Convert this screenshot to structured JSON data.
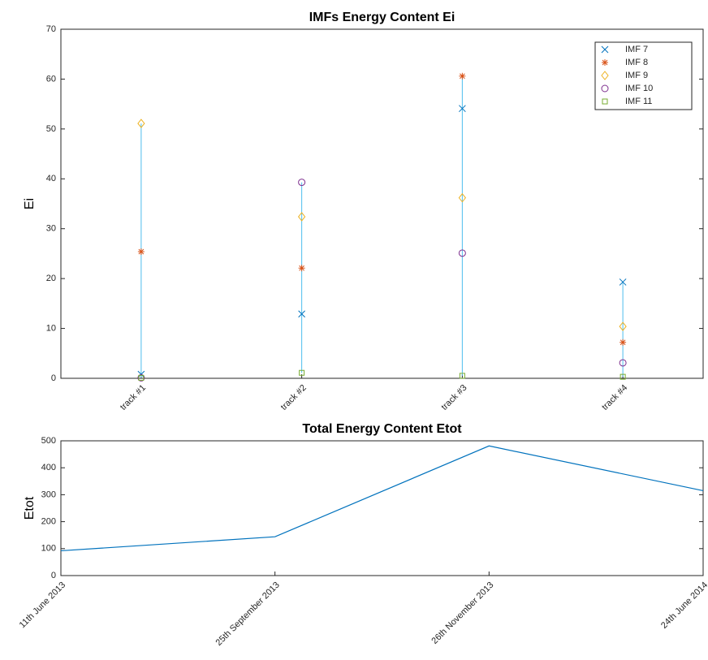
{
  "chart_data": [
    {
      "type": "scatter",
      "title": "IMFs Energy Content Ei",
      "y_label": "Ei",
      "categories": [
        "track #1",
        "track #2",
        "track #3",
        "track #4"
      ],
      "series": [
        {
          "name": "IMF 7",
          "color": "#0072bd",
          "marker": "x",
          "values": [
            0.8,
            12.9,
            54.1,
            19.3
          ]
        },
        {
          "name": "IMF 8",
          "color": "#d95319",
          "marker": "star",
          "values": [
            25.4,
            22.1,
            60.6,
            7.2
          ]
        },
        {
          "name": "IMF 9",
          "color": "#edb120",
          "marker": "diamond",
          "values": [
            51.1,
            32.4,
            36.2,
            10.4
          ]
        },
        {
          "name": "IMF 10",
          "color": "#7e2f8e",
          "marker": "circle",
          "values": [
            0.1,
            39.3,
            25.1,
            3.1
          ]
        },
        {
          "name": "IMF 11",
          "color": "#77ac30",
          "marker": "square",
          "values": [
            0.1,
            1.1,
            0.5,
            0.3
          ]
        }
      ],
      "range_color": "#4dbeee",
      "ylim": [
        0,
        70
      ],
      "yticks": [
        0,
        10,
        20,
        30,
        40,
        50,
        60,
        70
      ],
      "legend": "northeast"
    },
    {
      "type": "line",
      "title": "Total Energy Content Etot",
      "y_label": "Etot",
      "categories": [
        "11th June 2013",
        "25th September 2013",
        "26th November 2013",
        "24th June 2014"
      ],
      "values": [
        92,
        144,
        481,
        315
      ],
      "color": "#0072bd",
      "ylim": [
        0,
        500
      ],
      "yticks": [
        0,
        100,
        200,
        300,
        400,
        500
      ]
    }
  ]
}
